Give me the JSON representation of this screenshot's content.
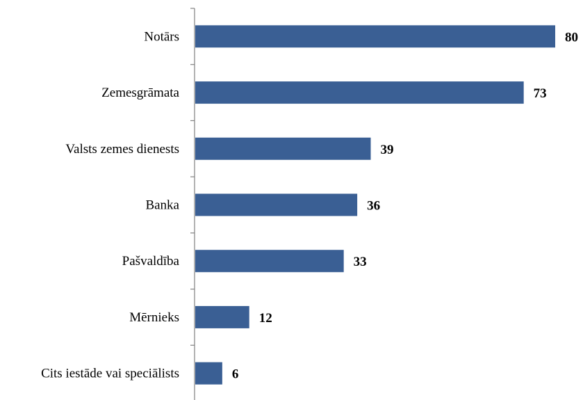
{
  "chart_data": {
    "type": "bar",
    "orientation": "horizontal",
    "title": "",
    "xlabel": "",
    "ylabel": "",
    "categories": [
      "Notārs",
      "Zemesgrāmata",
      "Valsts zemes dienests",
      "Banka",
      "Pašvaldība",
      "Mērnieks",
      "Cits iestāde vai speciālists"
    ],
    "values": [
      80,
      73,
      39,
      36,
      33,
      12,
      6
    ],
    "xlim": [
      0,
      80
    ],
    "grid": false,
    "legend": "none",
    "data_labels": true,
    "bar_color": "#3A5F94"
  }
}
